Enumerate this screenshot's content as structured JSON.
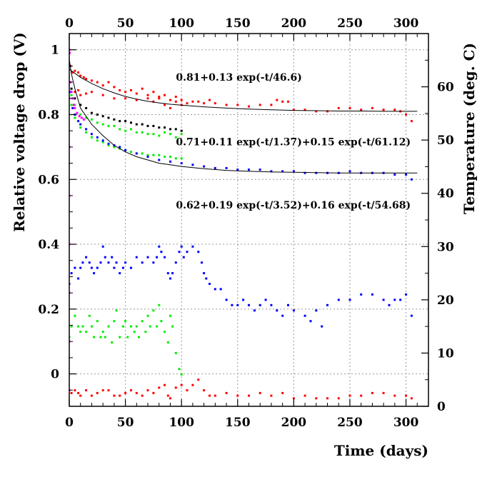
{
  "chart_data": {
    "type": "scatter",
    "title": "",
    "xlabel": "Time (days)",
    "ylabel": "Relative voltage drop (V)",
    "y2label": "Temperature (deg. C)",
    "xlim": [
      0,
      320
    ],
    "ylim": [
      -0.1,
      1.05
    ],
    "y2lim": [
      0,
      70
    ],
    "grid": true,
    "legend": "none",
    "x_ticks": [
      0,
      50,
      100,
      150,
      200,
      250,
      300
    ],
    "y_ticks": [
      0,
      0.2,
      0.4,
      0.6,
      0.8,
      1
    ],
    "y_tick_labels": [
      "0",
      "0.2",
      "0.4",
      "0.6",
      "0.8",
      "1"
    ],
    "y2_ticks": [
      0,
      10,
      20,
      30,
      40,
      50,
      60
    ],
    "annotations": [
      {
        "text": "0.81+0.13 exp(-t/46.6)",
        "x": 95,
        "y": 0.905
      },
      {
        "text": "0.71+0.11 exp(-t/1.37)+0.15 exp(-t/61.12)",
        "x": 95,
        "y": 0.705
      },
      {
        "text": "0.62+0.19 exp(-t/3.52)+0.16 exp(-t/54.68)",
        "x": 95,
        "y": 0.51
      }
    ],
    "series": [
      {
        "axis": "y",
        "color": "#ff0000",
        "style": "points",
        "x": [
          1,
          3,
          5,
          8,
          10,
          13,
          15,
          20,
          25,
          30,
          35,
          40,
          45,
          50,
          55,
          60,
          65,
          70,
          75,
          80,
          85,
          90,
          95,
          100,
          105,
          110,
          115,
          120,
          125,
          130,
          140,
          150,
          160,
          170,
          180,
          185,
          190,
          195,
          200,
          210,
          220,
          230,
          240,
          250,
          260,
          270,
          280,
          290,
          295,
          300,
          305
        ],
        "y": [
          0.95,
          0.93,
          0.935,
          0.93,
          0.92,
          0.915,
          0.91,
          0.905,
          0.9,
          0.89,
          0.9,
          0.885,
          0.875,
          0.87,
          0.875,
          0.865,
          0.88,
          0.86,
          0.87,
          0.85,
          0.86,
          0.845,
          0.855,
          0.845,
          0.835,
          0.84,
          0.84,
          0.835,
          0.845,
          0.835,
          0.83,
          0.83,
          0.825,
          0.83,
          0.83,
          0.845,
          0.84,
          0.84,
          0.815,
          0.815,
          0.81,
          0.81,
          0.82,
          0.82,
          0.815,
          0.82,
          0.815,
          0.815,
          0.81,
          0.8,
          0.78
        ]
      },
      {
        "axis": "y",
        "color": "#ff0000",
        "style": "points",
        "x": [
          5,
          8,
          10,
          15,
          20,
          30,
          40,
          50,
          60,
          70,
          75,
          80,
          85,
          90,
          95,
          100
        ],
        "y": [
          0.87,
          0.875,
          0.86,
          0.865,
          0.87,
          0.86,
          0.85,
          0.85,
          0.845,
          0.85,
          0.84,
          0.855,
          0.83,
          0.82,
          0.84,
          0.83
        ]
      },
      {
        "axis": "y",
        "color": "#000000",
        "style": "points",
        "x": [
          2,
          5,
          10,
          15,
          20,
          25,
          30,
          35,
          40,
          45,
          50,
          55,
          60,
          65,
          70,
          75,
          80,
          85,
          90,
          95,
          100
        ],
        "y": [
          0.88,
          0.85,
          0.83,
          0.82,
          0.805,
          0.8,
          0.795,
          0.79,
          0.785,
          0.78,
          0.78,
          0.775,
          0.77,
          0.77,
          0.765,
          0.765,
          0.76,
          0.76,
          0.755,
          0.755,
          0.75
        ]
      },
      {
        "axis": "y",
        "color": "#00ee00",
        "style": "points",
        "x": [
          2,
          5,
          10,
          15,
          20,
          25,
          30,
          35,
          40,
          45,
          50,
          55,
          60,
          65,
          70,
          75,
          80,
          85,
          90,
          95,
          100
        ],
        "y": [
          0.86,
          0.83,
          0.8,
          0.79,
          0.785,
          0.775,
          0.77,
          0.765,
          0.765,
          0.755,
          0.75,
          0.755,
          0.745,
          0.745,
          0.74,
          0.74,
          0.735,
          0.745,
          0.74,
          0.73,
          0.74
        ]
      },
      {
        "axis": "y",
        "color": "#00ee00",
        "style": "points",
        "x": [
          2,
          5,
          10,
          15,
          20,
          25,
          30,
          35,
          40,
          45,
          50,
          55,
          60,
          65,
          70,
          75,
          80,
          85,
          90,
          95,
          100
        ],
        "y": [
          0.83,
          0.79,
          0.76,
          0.745,
          0.73,
          0.72,
          0.715,
          0.705,
          0.7,
          0.695,
          0.69,
          0.685,
          0.68,
          0.68,
          0.675,
          0.675,
          0.675,
          0.67,
          0.67,
          0.665,
          0.665
        ]
      },
      {
        "axis": "y",
        "color": "#0000ff",
        "style": "points",
        "x": [
          1,
          3,
          5,
          8,
          10,
          15,
          20,
          25,
          30,
          35,
          40,
          45,
          50,
          60,
          70,
          80,
          90,
          100,
          110,
          120,
          130,
          140,
          150,
          160,
          170,
          180,
          190,
          200,
          210,
          220,
          230,
          240,
          250,
          260,
          270,
          280,
          290,
          300,
          305
        ],
        "y": [
          0.87,
          0.82,
          0.8,
          0.78,
          0.77,
          0.755,
          0.74,
          0.73,
          0.72,
          0.71,
          0.705,
          0.7,
          0.69,
          0.68,
          0.67,
          0.66,
          0.655,
          0.65,
          0.645,
          0.64,
          0.635,
          0.635,
          0.63,
          0.63,
          0.63,
          0.625,
          0.625,
          0.625,
          0.62,
          0.62,
          0.62,
          0.62,
          0.625,
          0.62,
          0.62,
          0.62,
          0.615,
          0.615,
          0.6
        ]
      },
      {
        "axis": "y",
        "color": "#ff00ff",
        "style": "points",
        "x": [
          0,
          0.3,
          0.6,
          1,
          2,
          3,
          4,
          5,
          7,
          9,
          11,
          13
        ],
        "y": [
          1.0,
          0.99,
          0.95,
          0.9,
          0.87,
          0.85,
          0.83,
          0.82,
          0.805,
          0.795,
          0.79,
          0.785
        ]
      },
      {
        "axis": "y",
        "color": "#ff00ff",
        "style": "points",
        "x": [
          0,
          0,
          0,
          0,
          0,
          0,
          0,
          0
        ],
        "y": [
          1.0,
          0.85,
          0.7,
          0.55,
          0.4,
          0.25,
          0.1,
          -0.05
        ]
      },
      {
        "axis": "y",
        "color": "#000000",
        "style": "line",
        "x": [
          0,
          10,
          20,
          30,
          40,
          50,
          60,
          70,
          80,
          90,
          100,
          120,
          140,
          160,
          180,
          200,
          220,
          240,
          260,
          280,
          300,
          310
        ],
        "y": [
          0.94,
          0.915,
          0.896,
          0.88,
          0.867,
          0.856,
          0.848,
          0.841,
          0.836,
          0.832,
          0.829,
          0.824,
          0.82,
          0.817,
          0.815,
          0.813,
          0.812,
          0.811,
          0.811,
          0.81,
          0.81,
          0.81
        ]
      },
      {
        "axis": "y",
        "color": "#000000",
        "style": "line",
        "x": [
          0,
          2,
          5,
          10,
          20,
          30,
          40,
          50,
          60,
          70,
          80,
          90,
          100,
          120,
          140,
          160,
          180,
          200,
          220,
          240,
          260,
          280,
          300,
          310
        ],
        "y": [
          0.97,
          0.925,
          0.88,
          0.82,
          0.77,
          0.735,
          0.705,
          0.685,
          0.67,
          0.66,
          0.65,
          0.645,
          0.64,
          0.633,
          0.628,
          0.625,
          0.623,
          0.622,
          0.621,
          0.62,
          0.62,
          0.62,
          0.62,
          0.62
        ]
      },
      {
        "axis": "y2",
        "color": "#0000ff",
        "style": "points",
        "x": [
          0,
          2,
          5,
          8,
          10,
          12,
          15,
          18,
          20,
          22,
          25,
          28,
          30,
          32,
          35,
          38,
          40,
          42,
          45,
          48,
          50,
          55,
          60,
          65,
          70,
          75,
          78,
          80,
          82,
          85,
          88,
          90,
          92,
          95,
          98,
          100,
          102,
          105,
          110,
          115,
          118,
          120,
          122,
          125,
          130,
          135,
          140,
          145,
          150,
          155,
          160,
          165,
          170,
          175,
          180,
          185,
          190,
          195,
          200,
          210,
          215,
          220,
          225,
          230,
          240,
          250,
          260,
          270,
          280,
          285,
          290,
          295,
          300,
          305
        ],
        "y": [
          23,
          25,
          26,
          24,
          26,
          27,
          28,
          27,
          26,
          25,
          26,
          27,
          30,
          28,
          27,
          28,
          26,
          27,
          25,
          26,
          27,
          26,
          28,
          27,
          28,
          27,
          28,
          30,
          29,
          28,
          25,
          24,
          25,
          27,
          29,
          30,
          28,
          29,
          30,
          29,
          27,
          25,
          24,
          23,
          22,
          22,
          20,
          19,
          19,
          20,
          19,
          18,
          19,
          20,
          19,
          18,
          17,
          19,
          18,
          17,
          16,
          18,
          15,
          19,
          20,
          20,
          21,
          21,
          20,
          19,
          20,
          20,
          21,
          17
        ]
      },
      {
        "axis": "y2",
        "color": "#00ee00",
        "style": "points",
        "x": [
          0,
          2,
          5,
          8,
          10,
          12,
          15,
          18,
          20,
          22,
          25,
          28,
          30,
          32,
          35,
          38,
          40,
          42,
          45,
          48,
          50,
          52,
          55,
          58,
          60,
          62,
          65,
          68,
          70,
          72,
          75,
          78,
          80,
          82,
          85,
          88,
          90,
          92,
          95,
          98,
          100
        ],
        "y": [
          13,
          15,
          17,
          15,
          14,
          15,
          14,
          17,
          15,
          13,
          16,
          13,
          14,
          13,
          15,
          12,
          16,
          18,
          13,
          15,
          16,
          13,
          15,
          14,
          15,
          13,
          16,
          14,
          17,
          15,
          18,
          15,
          19,
          16,
          14,
          12,
          17,
          15,
          10,
          7,
          6
        ]
      },
      {
        "axis": "y2",
        "color": "#ff0000",
        "style": "points",
        "x": [
          2,
          5,
          8,
          10,
          15,
          20,
          25,
          30,
          35,
          40,
          45,
          50,
          55,
          60,
          65,
          70,
          75,
          80,
          85,
          88,
          90,
          95,
          100,
          105,
          110,
          115,
          120,
          125,
          130,
          140,
          150,
          160,
          170,
          180,
          190,
          200,
          210,
          220,
          230,
          240,
          250,
          260,
          270,
          280,
          290,
          300,
          305
        ],
        "y": [
          2.5,
          3,
          2.5,
          2,
          3,
          2,
          2.5,
          3,
          3,
          2,
          2,
          2.5,
          3,
          2.5,
          2,
          3,
          2.5,
          3.5,
          4,
          2,
          1.5,
          3.5,
          4,
          3,
          4,
          5,
          3,
          2,
          2,
          2.5,
          2,
          2,
          2.5,
          2,
          2.5,
          1.5,
          2,
          1.5,
          1.5,
          1.5,
          2,
          2,
          2.5,
          2.5,
          2,
          2,
          1.5
        ]
      }
    ]
  }
}
